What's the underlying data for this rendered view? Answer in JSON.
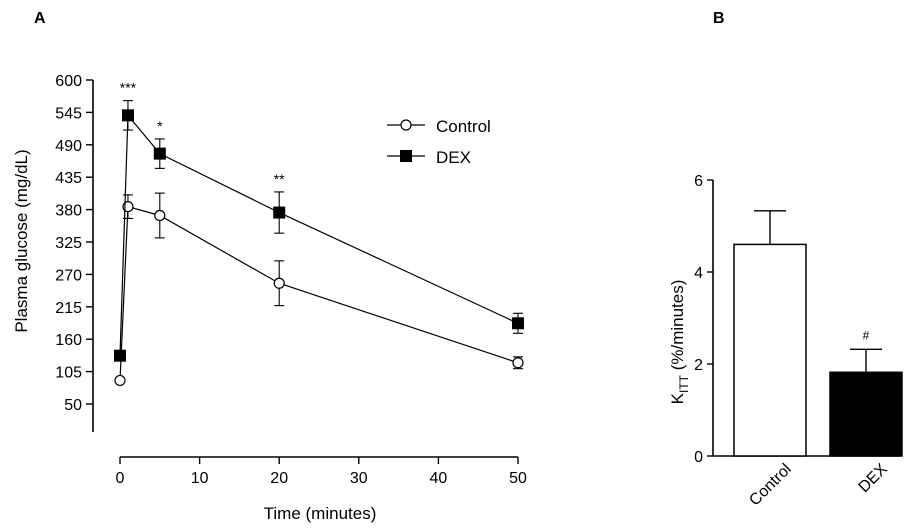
{
  "chart_data": [
    {
      "panel_label": "A",
      "type": "line",
      "xlabel": "Time (minutes)",
      "ylabel": "Plasma glucose (mg/dL)",
      "xlim": [
        0,
        50
      ],
      "ylim": [
        50,
        600
      ],
      "x_ticks": [
        "0",
        "10",
        "20",
        "30",
        "40",
        "50"
      ],
      "y_ticks": [
        "50",
        "105",
        "160",
        "215",
        "270",
        "325",
        "380",
        "435",
        "490",
        "545",
        "600"
      ],
      "legend_position": "top-right",
      "series": [
        {
          "name": "Control",
          "marker": "open-circle",
          "x": [
            0,
            1,
            5,
            20,
            50
          ],
          "y": [
            90,
            385,
            370,
            255,
            120
          ],
          "err": [
            0,
            20,
            38,
            38,
            10
          ]
        },
        {
          "name": "DEX",
          "marker": "filled-square",
          "x": [
            0,
            1,
            5,
            20,
            50
          ],
          "y": [
            132,
            540,
            475,
            375,
            187
          ],
          "err": [
            0,
            25,
            25,
            35,
            17
          ]
        }
      ],
      "annotations": [
        {
          "x": 1,
          "text": "***"
        },
        {
          "x": 5,
          "text": "*"
        },
        {
          "x": 20,
          "text": "**"
        }
      ]
    },
    {
      "panel_label": "B",
      "type": "bar",
      "ylabel_main": "K",
      "ylabel_sub": "ITT",
      "ylabel_rest": " (%/minutes)",
      "categories": [
        "Control",
        "DEX"
      ],
      "values": [
        4.6,
        1.82
      ],
      "err": [
        0.73,
        0.5
      ],
      "colors": [
        "#ffffff",
        "#000000"
      ],
      "ylim": [
        0,
        6
      ],
      "y_ticks": [
        "0",
        "2",
        "4",
        "6"
      ],
      "annotations": [
        {
          "category": "DEX",
          "text": "#"
        }
      ]
    }
  ]
}
